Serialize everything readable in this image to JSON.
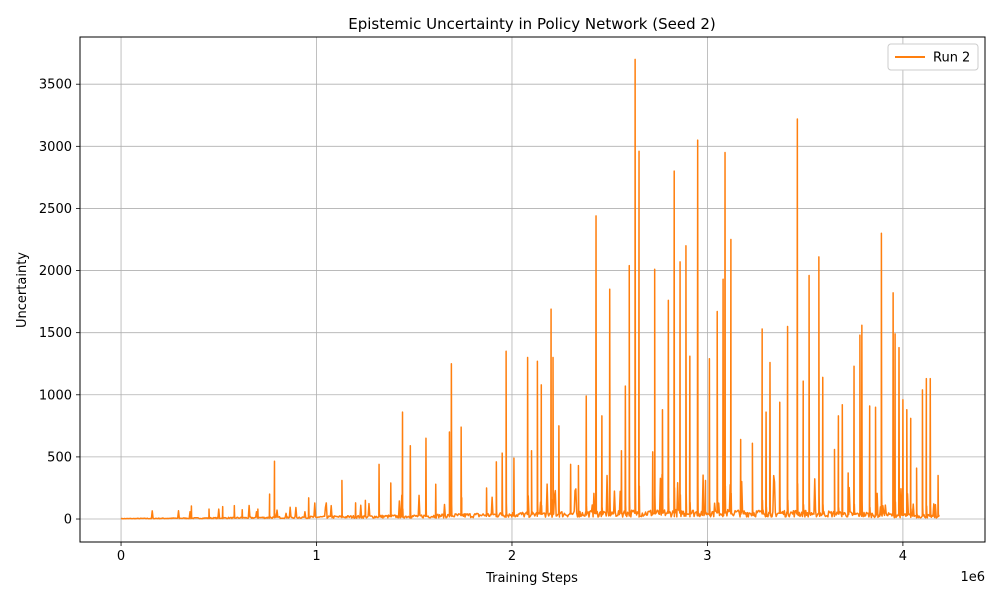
{
  "chart_data": {
    "type": "line",
    "title": "Epistemic Uncertainty in Policy Network (Seed 2)",
    "xlabel": "Training Steps",
    "ylabel": "Uncertainty",
    "x_offset_label": "1e6",
    "xlim": [
      -210000,
      4420000
    ],
    "ylim": [
      -185,
      3880
    ],
    "x_ticks": [
      0,
      1000000,
      2000000,
      3000000,
      4000000
    ],
    "x_tick_labels": [
      "0",
      "1",
      "2",
      "3",
      "4"
    ],
    "y_ticks": [
      0,
      500,
      1000,
      1500,
      2000,
      2500,
      3000,
      3500
    ],
    "y_tick_labels": [
      "0",
      "500",
      "1000",
      "1500",
      "2000",
      "2500",
      "3000",
      "3500"
    ],
    "grid": true,
    "legend_position": "top-right",
    "series": [
      {
        "name": "Run 2",
        "color": "#ff7f0e",
        "x_start": 0,
        "x_end": 4190000,
        "baseline_points": [
          [
            0,
            3
          ],
          [
            500000,
            8
          ],
          [
            1000000,
            15
          ],
          [
            1500000,
            22
          ],
          [
            2000000,
            35
          ],
          [
            2500000,
            45
          ],
          [
            3000000,
            50
          ],
          [
            3500000,
            45
          ],
          [
            4000000,
            30
          ],
          [
            4190000,
            20
          ]
        ],
        "spikes": [
          [
            360000,
            105
          ],
          [
            450000,
            80
          ],
          [
            520000,
            100
          ],
          [
            580000,
            70
          ],
          [
            620000,
            75
          ],
          [
            700000,
            80
          ],
          [
            760000,
            200
          ],
          [
            785000,
            465
          ],
          [
            960000,
            170
          ],
          [
            1130000,
            310
          ],
          [
            1200000,
            130
          ],
          [
            1250000,
            150
          ],
          [
            1320000,
            440
          ],
          [
            1380000,
            290
          ],
          [
            1440000,
            860
          ],
          [
            1480000,
            590
          ],
          [
            1560000,
            650
          ],
          [
            1610000,
            280
          ],
          [
            1680000,
            700
          ],
          [
            1690000,
            1250
          ],
          [
            1740000,
            740
          ],
          [
            1870000,
            250
          ],
          [
            1920000,
            460
          ],
          [
            1950000,
            530
          ],
          [
            1970000,
            1350
          ],
          [
            2010000,
            490
          ],
          [
            2080000,
            1300
          ],
          [
            2100000,
            550
          ],
          [
            2130000,
            1270
          ],
          [
            2150000,
            1080
          ],
          [
            2200000,
            1690
          ],
          [
            2210000,
            1300
          ],
          [
            2240000,
            750
          ],
          [
            2300000,
            440
          ],
          [
            2340000,
            430
          ],
          [
            2380000,
            990
          ],
          [
            2430000,
            2440
          ],
          [
            2460000,
            830
          ],
          [
            2500000,
            1850
          ],
          [
            2560000,
            550
          ],
          [
            2580000,
            1070
          ],
          [
            2600000,
            2040
          ],
          [
            2630000,
            3700
          ],
          [
            2650000,
            2960
          ],
          [
            2720000,
            540
          ],
          [
            2730000,
            2010
          ],
          [
            2770000,
            880
          ],
          [
            2800000,
            1760
          ],
          [
            2830000,
            2800
          ],
          [
            2860000,
            2070
          ],
          [
            2890000,
            2200
          ],
          [
            2910000,
            1310
          ],
          [
            2950000,
            3050
          ],
          [
            2990000,
            310
          ],
          [
            3010000,
            1290
          ],
          [
            3050000,
            1670
          ],
          [
            3080000,
            1930
          ],
          [
            3090000,
            2950
          ],
          [
            3120000,
            2250
          ],
          [
            3170000,
            640
          ],
          [
            3230000,
            610
          ],
          [
            3280000,
            1530
          ],
          [
            3300000,
            860
          ],
          [
            3320000,
            1260
          ],
          [
            3370000,
            940
          ],
          [
            3410000,
            1550
          ],
          [
            3460000,
            3220
          ],
          [
            3490000,
            1110
          ],
          [
            3520000,
            1960
          ],
          [
            3570000,
            2110
          ],
          [
            3590000,
            1140
          ],
          [
            3650000,
            560
          ],
          [
            3670000,
            830
          ],
          [
            3690000,
            920
          ],
          [
            3720000,
            370
          ],
          [
            3750000,
            1230
          ],
          [
            3780000,
            1480
          ],
          [
            3790000,
            1560
          ],
          [
            3830000,
            910
          ],
          [
            3860000,
            900
          ],
          [
            3890000,
            2300
          ],
          [
            3950000,
            1820
          ],
          [
            3960000,
            1490
          ],
          [
            3980000,
            1380
          ],
          [
            4000000,
            960
          ],
          [
            4020000,
            880
          ],
          [
            4040000,
            810
          ],
          [
            4070000,
            410
          ],
          [
            4100000,
            1040
          ],
          [
            4120000,
            1130
          ],
          [
            4140000,
            1130
          ],
          [
            4180000,
            350
          ]
        ]
      }
    ]
  }
}
